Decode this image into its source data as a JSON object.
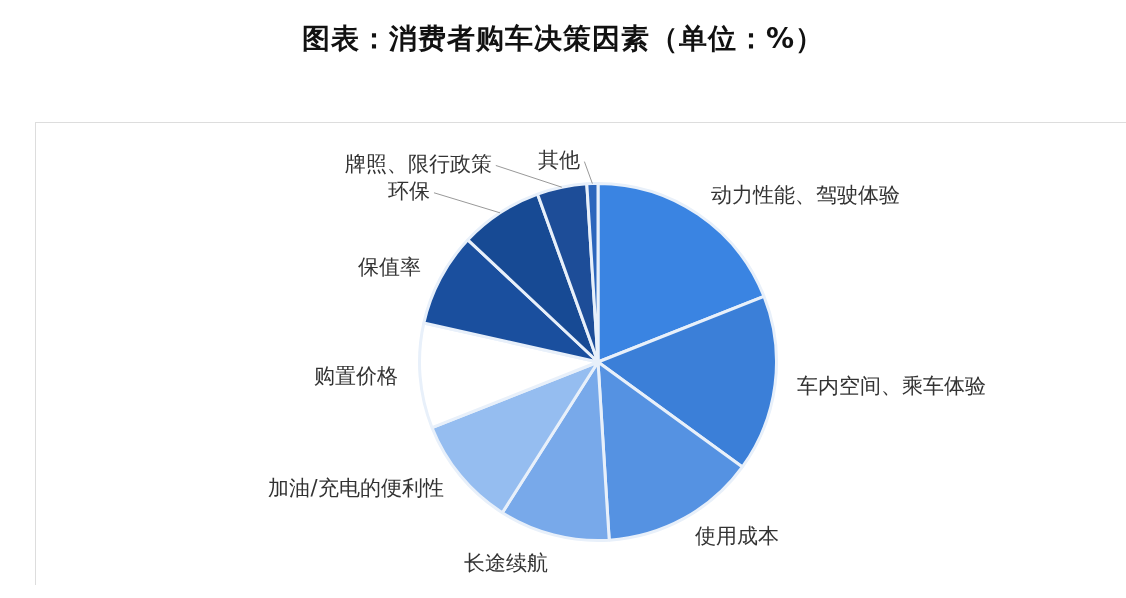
{
  "chart_data": {
    "type": "pie",
    "title": "图表：消费者购车决策因素（单位：%）",
    "categories": [
      "动力性能、驾驶体验",
      "车内空间、乘车体验",
      "使用成本",
      "长途续航",
      "加油/充电的便利性",
      "购置价格",
      "保值率",
      "环保",
      "牌照、限行政策",
      "其他"
    ],
    "values": [
      19,
      16,
      14,
      10,
      10,
      9.5,
      8.5,
      7.5,
      4.5,
      1
    ],
    "colors": [
      "#3a84e2",
      "#3b7fd8",
      "#5592e2",
      "#78a9ea",
      "#95bdf0",
      "#ffffff",
      "#1a4f9e",
      "#174a94",
      "#1d4d98",
      "#2c66bc"
    ],
    "legend": false
  }
}
